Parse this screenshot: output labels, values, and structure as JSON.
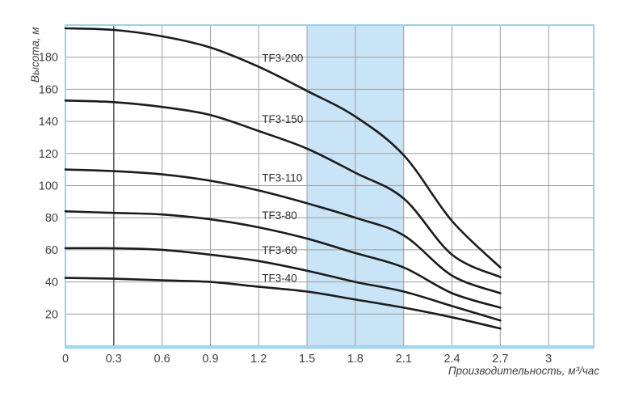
{
  "chart_data": {
    "type": "line",
    "title": "",
    "ylabel": "Высота, м",
    "xlabel": "Производительность, м³/час",
    "x": [
      0,
      0.3,
      0.6,
      0.9,
      1.2,
      1.5,
      1.8,
      2.1,
      2.4,
      2.7
    ],
    "series": [
      {
        "name": "TF3-200",
        "values": [
          198,
          197,
          193,
          186,
          174,
          159,
          143,
          119,
          78,
          49
        ],
        "label_y": 177
      },
      {
        "name": "TF3-150",
        "values": [
          153,
          152,
          149,
          144,
          134,
          123,
          108,
          92,
          57,
          43
        ],
        "label_y": 139
      },
      {
        "name": "TF3-110",
        "values": [
          110,
          109,
          107,
          103,
          97,
          89,
          80,
          69,
          44,
          33
        ],
        "label_y": 102.5
      },
      {
        "name": "TF3-80",
        "values": [
          84,
          83,
          82,
          79,
          74,
          67,
          58,
          49,
          33,
          24
        ],
        "label_y": 79
      },
      {
        "name": "TF3-60",
        "values": [
          61,
          61,
          60,
          57,
          53,
          47,
          40,
          34,
          25,
          16
        ],
        "label_y": 57.5
      },
      {
        "name": "TF3-40",
        "values": [
          42.5,
          42,
          41,
          40,
          37,
          34,
          29,
          24,
          18,
          11
        ],
        "label_y": 40
      }
    ],
    "xticks": [
      {
        "value": 0,
        "label": "0"
      },
      {
        "value": 0.3,
        "label": "0.3"
      },
      {
        "value": 0.6,
        "label": "0.6"
      },
      {
        "value": 0.9,
        "label": "0.9"
      },
      {
        "value": 1.2,
        "label": "1.2"
      },
      {
        "value": 1.5,
        "label": "1.5"
      },
      {
        "value": 1.8,
        "label": "1.8"
      },
      {
        "value": 2.1,
        "label": "2.1"
      },
      {
        "value": 2.4,
        "label": "2.4"
      },
      {
        "value": 2.7,
        "label": "2.7"
      },
      {
        "value": 3,
        "label": "3"
      }
    ],
    "yticks": [
      {
        "value": 20,
        "label": "20"
      },
      {
        "value": 40,
        "label": "40"
      },
      {
        "value": 60,
        "label": "60"
      },
      {
        "value": 80,
        "label": "80"
      },
      {
        "value": 100,
        "label": "100"
      },
      {
        "value": 120,
        "label": "120"
      },
      {
        "value": 140,
        "label": "140"
      },
      {
        "value": 160,
        "label": "160"
      },
      {
        "value": 180,
        "label": "180"
      }
    ],
    "xlim": [
      0,
      3.28
    ],
    "ylim": [
      0,
      200
    ],
    "grid": true,
    "legend_position": "inline-labels",
    "band": {
      "x_from": 1.5,
      "x_to": 2.1
    },
    "emphasized_x_gridline": 0.3,
    "curve_label_x": 1.22,
    "colors": {
      "curve": "#1c1c1c",
      "grid": "#9d9d9d",
      "grid_emphasis": "#5f5f5f",
      "frame": "#9fcfe8",
      "frame_bottom": "#a8d8ee",
      "band": "#c9e4f6",
      "text": "#3f3f3f",
      "curve_label": "#2e2e2e",
      "background": "#ffffff"
    }
  }
}
